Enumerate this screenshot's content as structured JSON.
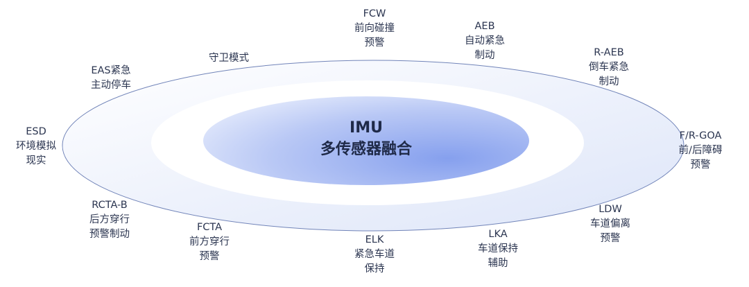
{
  "center": {
    "title": "IMU",
    "subtitle": "多传感器融合"
  },
  "colors": {
    "text": "#2b3550",
    "inner": "#8fa8ee",
    "outer_ring": "#e6ecfa",
    "outline": "#6a7fb5"
  },
  "features": [
    {
      "lines": [
        "FCW",
        "前向碰撞",
        "预警"
      ]
    },
    {
      "lines": [
        "AEB",
        "自动紧急",
        "制动"
      ]
    },
    {
      "lines": [
        "R-AEB",
        "倒车紧急",
        "制动"
      ]
    },
    {
      "lines": [
        "F/R-GOA",
        "前/后障碍",
        "预警"
      ]
    },
    {
      "lines": [
        "LDW",
        "车道偏离",
        "预警"
      ]
    },
    {
      "lines": [
        "LKA",
        "车道保持",
        "辅助"
      ]
    },
    {
      "lines": [
        "ELK",
        "紧急车道",
        "保持"
      ]
    },
    {
      "lines": [
        "FCTA",
        "前方穿行",
        "预警"
      ]
    },
    {
      "lines": [
        "RCTA-B",
        "后方穿行",
        "预警制动"
      ]
    },
    {
      "lines": [
        "ESD",
        "环境模拟",
        "现实"
      ]
    },
    {
      "lines": [
        "EAS紧急",
        "主动停车"
      ]
    },
    {
      "lines": [
        "守卫模式"
      ]
    }
  ]
}
